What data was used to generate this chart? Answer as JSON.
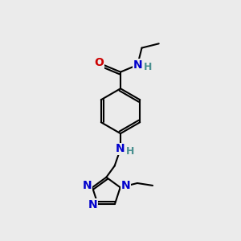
{
  "bg_color": "#ebebeb",
  "atom_color_N": "#0000cc",
  "atom_color_O": "#cc0000",
  "atom_color_H": "#4a9090",
  "bond_color": "#000000",
  "bond_width": 1.5,
  "fig_w": 3.0,
  "fig_h": 3.0,
  "dpi": 100,
  "xlim": [
    0,
    10
  ],
  "ylim": [
    0,
    10
  ]
}
